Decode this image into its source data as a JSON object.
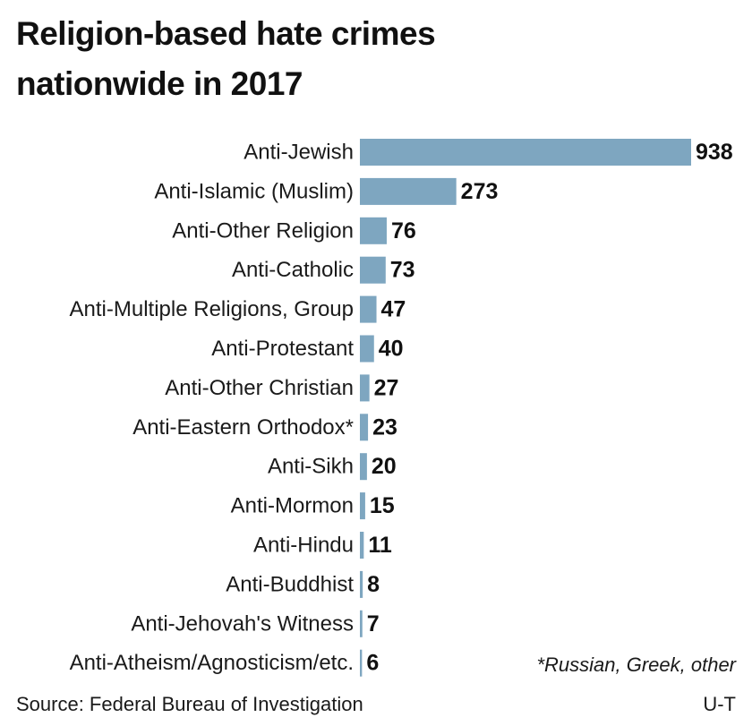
{
  "header": {
    "title_line1": "Religion-based hate crimes",
    "title_line2": "nationwide in 2017"
  },
  "footer": {
    "footnote": "*Russian, Greek, other",
    "source": "Source: Federal Bureau of Investigation",
    "credit": "U-T"
  },
  "colors": {
    "bar": "#7ea6c0",
    "text": "#1a1a1a"
  },
  "chart_data": {
    "type": "bar",
    "orientation": "horizontal",
    "categories": [
      "Anti-Jewish",
      "Anti-Islamic (Muslim)",
      "Anti-Other Religion",
      "Anti-Catholic",
      "Anti-Multiple Religions, Group",
      "Anti-Protestant",
      "Anti-Other Christian",
      "Anti-Eastern Orthodox*",
      "Anti-Sikh",
      "Anti-Mormon",
      "Anti-Hindu",
      "Anti-Buddhist",
      "Anti-Jehovah's Witness",
      "Anti-Atheism/Agnosticism/etc."
    ],
    "values": [
      938,
      273,
      76,
      73,
      47,
      40,
      27,
      23,
      20,
      15,
      11,
      8,
      7,
      6
    ],
    "xlim": [
      0,
      938
    ],
    "grid": false,
    "legend": false
  }
}
